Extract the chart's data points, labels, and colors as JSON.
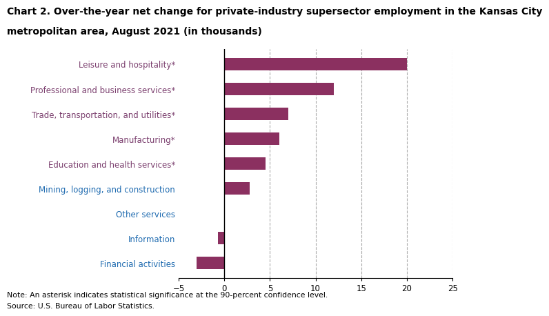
{
  "title_line1": "Chart 2. Over-the-year net change for private-industry supersector employment in the Kansas City",
  "title_line2": "metropolitan area, August 2021 (in thousands)",
  "categories": [
    "Financial activities",
    "Information",
    "Other services",
    "Mining, logging, and construction",
    "Education and health services*",
    "Manufacturing*",
    "Trade, transportation, and utilities*",
    "Professional and business services*",
    "Leisure and hospitality*"
  ],
  "values": [
    -3.0,
    -0.7,
    0.0,
    2.8,
    4.5,
    6.0,
    7.0,
    12.0,
    20.0
  ],
  "bar_color": "#8B3060",
  "xlim": [
    -5,
    25
  ],
  "xticks": [
    -5,
    0,
    5,
    10,
    15,
    20,
    25
  ],
  "grid_color": "#aaaaaa",
  "note": "Note: An asterisk indicates statistical significance at the 90-percent confidence level.",
  "source": "Source: U.S. Bureau of Labor Statistics.",
  "label_color_asterisk": "#7B3F6E",
  "label_color_normal": "#1F6BB0",
  "label_fontsize": 8.5,
  "title_fontsize": 10.0,
  "note_fontsize": 7.8,
  "bar_height": 0.5
}
